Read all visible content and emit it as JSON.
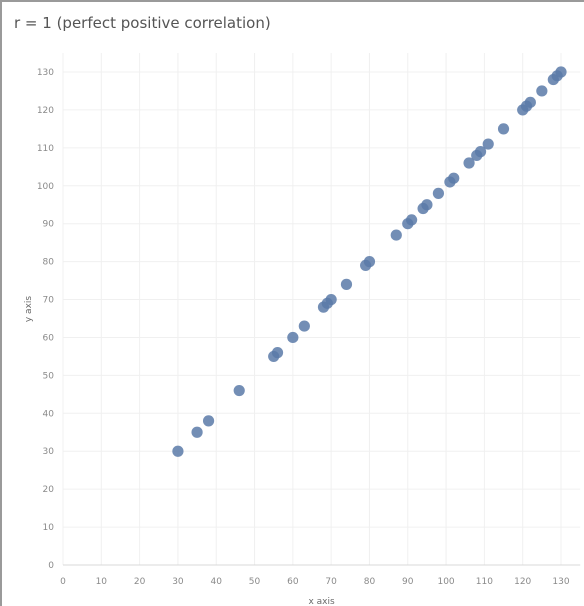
{
  "chart_data": {
    "type": "scatter",
    "title": "r = 1 (perfect positive correlation)",
    "xlabel": "x axis",
    "ylabel": "y axis",
    "xlim": [
      0,
      135
    ],
    "ylim": [
      0,
      135
    ],
    "xticks": [
      0,
      10,
      20,
      30,
      40,
      50,
      60,
      70,
      80,
      90,
      100,
      110,
      120,
      130
    ],
    "yticks": [
      0,
      10,
      20,
      30,
      40,
      50,
      60,
      70,
      80,
      90,
      100,
      110,
      120,
      130
    ],
    "grid": true,
    "marker_color": "#5b7aa8",
    "points": [
      [
        30,
        30
      ],
      [
        35,
        35
      ],
      [
        38,
        38
      ],
      [
        46,
        46
      ],
      [
        55,
        55
      ],
      [
        56,
        56
      ],
      [
        60,
        60
      ],
      [
        63,
        63
      ],
      [
        68,
        68
      ],
      [
        69,
        69
      ],
      [
        70,
        70
      ],
      [
        74,
        74
      ],
      [
        79,
        79
      ],
      [
        80,
        80
      ],
      [
        87,
        87
      ],
      [
        90,
        90
      ],
      [
        91,
        91
      ],
      [
        94,
        94
      ],
      [
        95,
        95
      ],
      [
        98,
        98
      ],
      [
        101,
        101
      ],
      [
        102,
        102
      ],
      [
        106,
        106
      ],
      [
        108,
        108
      ],
      [
        109,
        109
      ],
      [
        111,
        111
      ],
      [
        115,
        115
      ],
      [
        120,
        120
      ],
      [
        121,
        121
      ],
      [
        122,
        122
      ],
      [
        125,
        125
      ],
      [
        128,
        128
      ],
      [
        129,
        129
      ],
      [
        130,
        130
      ]
    ]
  }
}
